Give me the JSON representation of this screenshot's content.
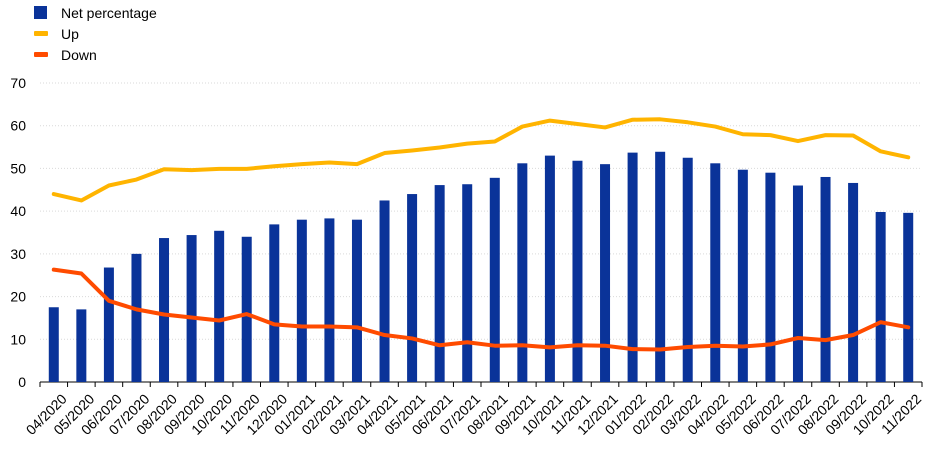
{
  "chart_data": {
    "type": "bar",
    "categories": [
      "04/2020",
      "05/2020",
      "06/2020",
      "07/2020",
      "08/2020",
      "09/2020",
      "10/2020",
      "11/2020",
      "12/2020",
      "01/2021",
      "02/2021",
      "03/2021",
      "04/2021",
      "05/2021",
      "06/2021",
      "07/2021",
      "08/2021",
      "09/2021",
      "10/2021",
      "11/2021",
      "12/2021",
      "01/2022",
      "02/2022",
      "03/2022",
      "04/2022",
      "05/2022",
      "06/2022",
      "07/2022",
      "08/2022",
      "09/2022",
      "10/2022",
      "11/2022"
    ],
    "series": [
      {
        "name": "Net percentage",
        "type": "bar",
        "color": "#0a3399",
        "values": [
          17.5,
          17,
          26.8,
          30,
          33.7,
          34.4,
          35.4,
          34,
          36.9,
          38,
          38.3,
          38,
          42.5,
          44,
          46.1,
          46.3,
          47.8,
          51.2,
          53,
          51.8,
          51,
          53.7,
          53.9,
          52.5,
          51.2,
          49.7,
          49,
          46,
          48,
          46.6,
          39.8,
          39.6
        ]
      },
      {
        "name": "Up",
        "type": "line",
        "color": "#ffb400",
        "values": [
          44,
          42.5,
          46,
          47.4,
          49.8,
          49.6,
          49.9,
          49.9,
          50.5,
          51,
          51.4,
          51,
          53.6,
          54.2,
          54.9,
          55.8,
          56.3,
          59.8,
          61.2,
          60.4,
          59.6,
          61.4,
          61.5,
          60.8,
          59.8,
          58,
          57.8,
          56.4,
          57.8,
          57.7,
          54,
          52.6
        ]
      },
      {
        "name": "Down",
        "type": "line",
        "color": "#ff4b00",
        "values": [
          26.3,
          25.4,
          19,
          17,
          15.8,
          15.1,
          14.4,
          15.9,
          13.5,
          13,
          13,
          12.8,
          11,
          10.2,
          8.6,
          9.3,
          8.5,
          8.6,
          8.1,
          8.6,
          8.5,
          7.7,
          7.6,
          8.2,
          8.5,
          8.3,
          8.8,
          10.3,
          9.8,
          11,
          14,
          12.8
        ]
      }
    ],
    "title": "",
    "xlabel": "",
    "ylabel": "",
    "ylim": [
      0,
      70
    ],
    "yticks": [
      0,
      10,
      20,
      30,
      40,
      50,
      60,
      70
    ],
    "grid": true,
    "legend_position": "top-left"
  }
}
